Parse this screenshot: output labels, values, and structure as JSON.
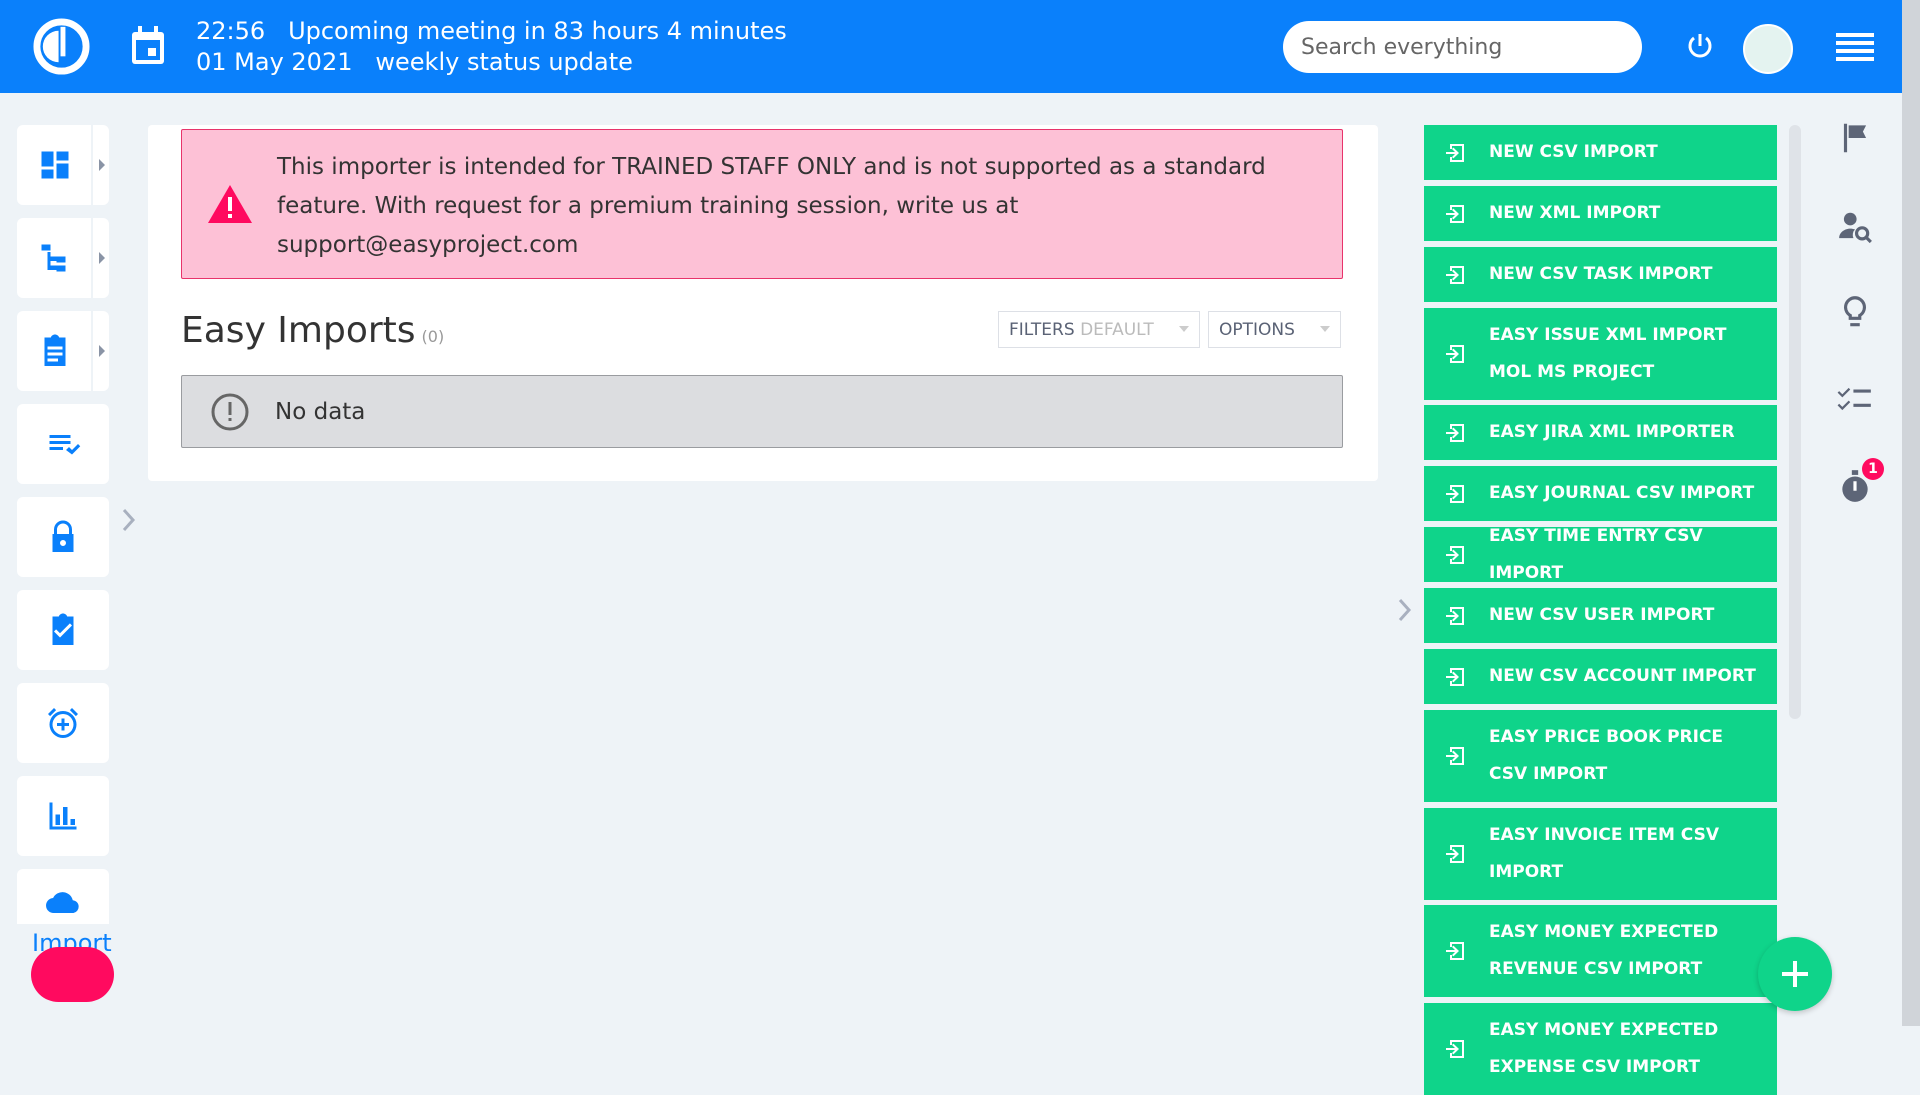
{
  "header": {
    "time": "22:56",
    "meeting": "Upcoming meeting in 83 hours 4 minutes",
    "date": "01 May 2021",
    "meeting_title": "weekly status update",
    "search_placeholder": "Search everything"
  },
  "sidebar": {
    "items": [
      {
        "name": "dashboard"
      },
      {
        "name": "projects-tree"
      },
      {
        "name": "tasks"
      },
      {
        "name": "checklist"
      },
      {
        "name": "administration"
      },
      {
        "name": "my-tasks"
      },
      {
        "name": "reminders"
      },
      {
        "name": "reports"
      },
      {
        "name": "import",
        "label": "Import"
      }
    ]
  },
  "main": {
    "alert": "This importer is intended for TRAINED STAFF ONLY and is not supported as a standard feature. With request for a premium training session, write us at support@easyproject.com",
    "title": "Easy Imports",
    "count": "(0)",
    "filters_label": "FILTERS",
    "filters_value": "DEFAULT",
    "options_label": "OPTIONS",
    "no_data": "No data"
  },
  "actions": [
    "NEW CSV IMPORT",
    "NEW XML IMPORT",
    "NEW CSV TASK IMPORT",
    "EASY ISSUE XML IMPORT MOL MS PROJECT",
    "EASY JIRA XML IMPORTER",
    "EASY JOURNAL CSV IMPORT",
    "EASY TIME ENTRY CSV IMPORT",
    "NEW CSV USER IMPORT",
    "NEW CSV ACCOUNT IMPORT",
    "EASY PRICE BOOK PRICE CSV IMPORT",
    "EASY INVOICE ITEM CSV IMPORT",
    "EASY MONEY EXPECTED REVENUE CSV IMPORT",
    "EASY MONEY EXPECTED EXPENSE CSV IMPORT"
  ],
  "rail": {
    "timer_badge": "1"
  },
  "colors": {
    "brand": "#0a80fb",
    "action": "#0fd48a",
    "alert_bg": "#fdc1d6",
    "danger": "#ff0a5f"
  }
}
